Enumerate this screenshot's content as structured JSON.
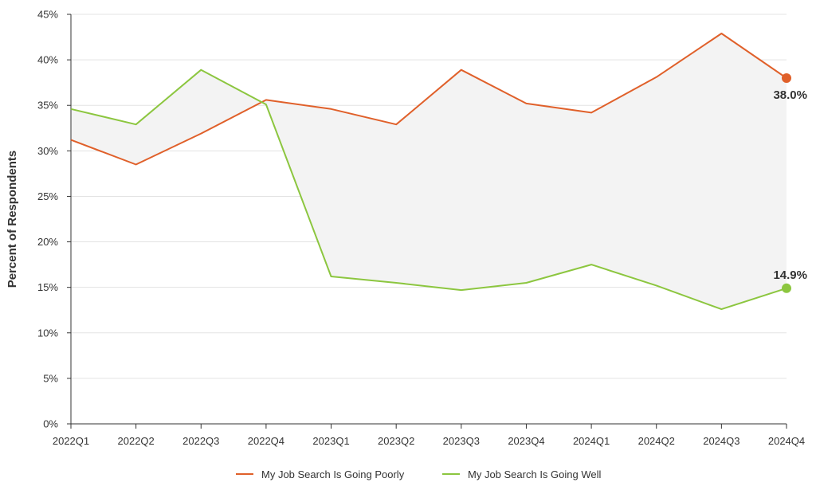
{
  "chart_data": {
    "type": "line",
    "categories": [
      "2022Q1",
      "2022Q2",
      "2022Q3",
      "2022Q4",
      "2023Q1",
      "2023Q2",
      "2023Q3",
      "2023Q4",
      "2024Q1",
      "2024Q2",
      "2024Q3",
      "2024Q4"
    ],
    "series": [
      {
        "name": "My Job Search Is Going Poorly",
        "color": "#e0602a",
        "values": [
          31.2,
          28.5,
          31.9,
          35.6,
          34.6,
          32.9,
          38.9,
          35.2,
          34.2,
          38.1,
          42.9,
          38.0
        ],
        "end_label": "38.0%"
      },
      {
        "name": "My Job Search Is Going Well",
        "color": "#8cc63f",
        "values": [
          34.6,
          32.9,
          38.9,
          35.1,
          16.2,
          15.5,
          14.7,
          15.5,
          17.5,
          15.2,
          12.6,
          14.9
        ],
        "end_label": "14.9%"
      }
    ],
    "ylabel": "Percent of Respondents",
    "ylim": [
      0,
      45
    ],
    "yticks": [
      {
        "value": 0,
        "label": "0%"
      },
      {
        "value": 5,
        "label": "5%"
      },
      {
        "value": 10,
        "label": "10%"
      },
      {
        "value": 15,
        "label": "15%"
      },
      {
        "value": 20,
        "label": "20%"
      },
      {
        "value": 25,
        "label": "25%"
      },
      {
        "value": 30,
        "label": "30%"
      },
      {
        "value": 35,
        "label": "35%"
      },
      {
        "value": 40,
        "label": "40%"
      },
      {
        "value": 45,
        "label": "45%"
      }
    ],
    "grid": true,
    "gap_fill_color": "#f3f3f3",
    "legend_position": "bottom"
  }
}
